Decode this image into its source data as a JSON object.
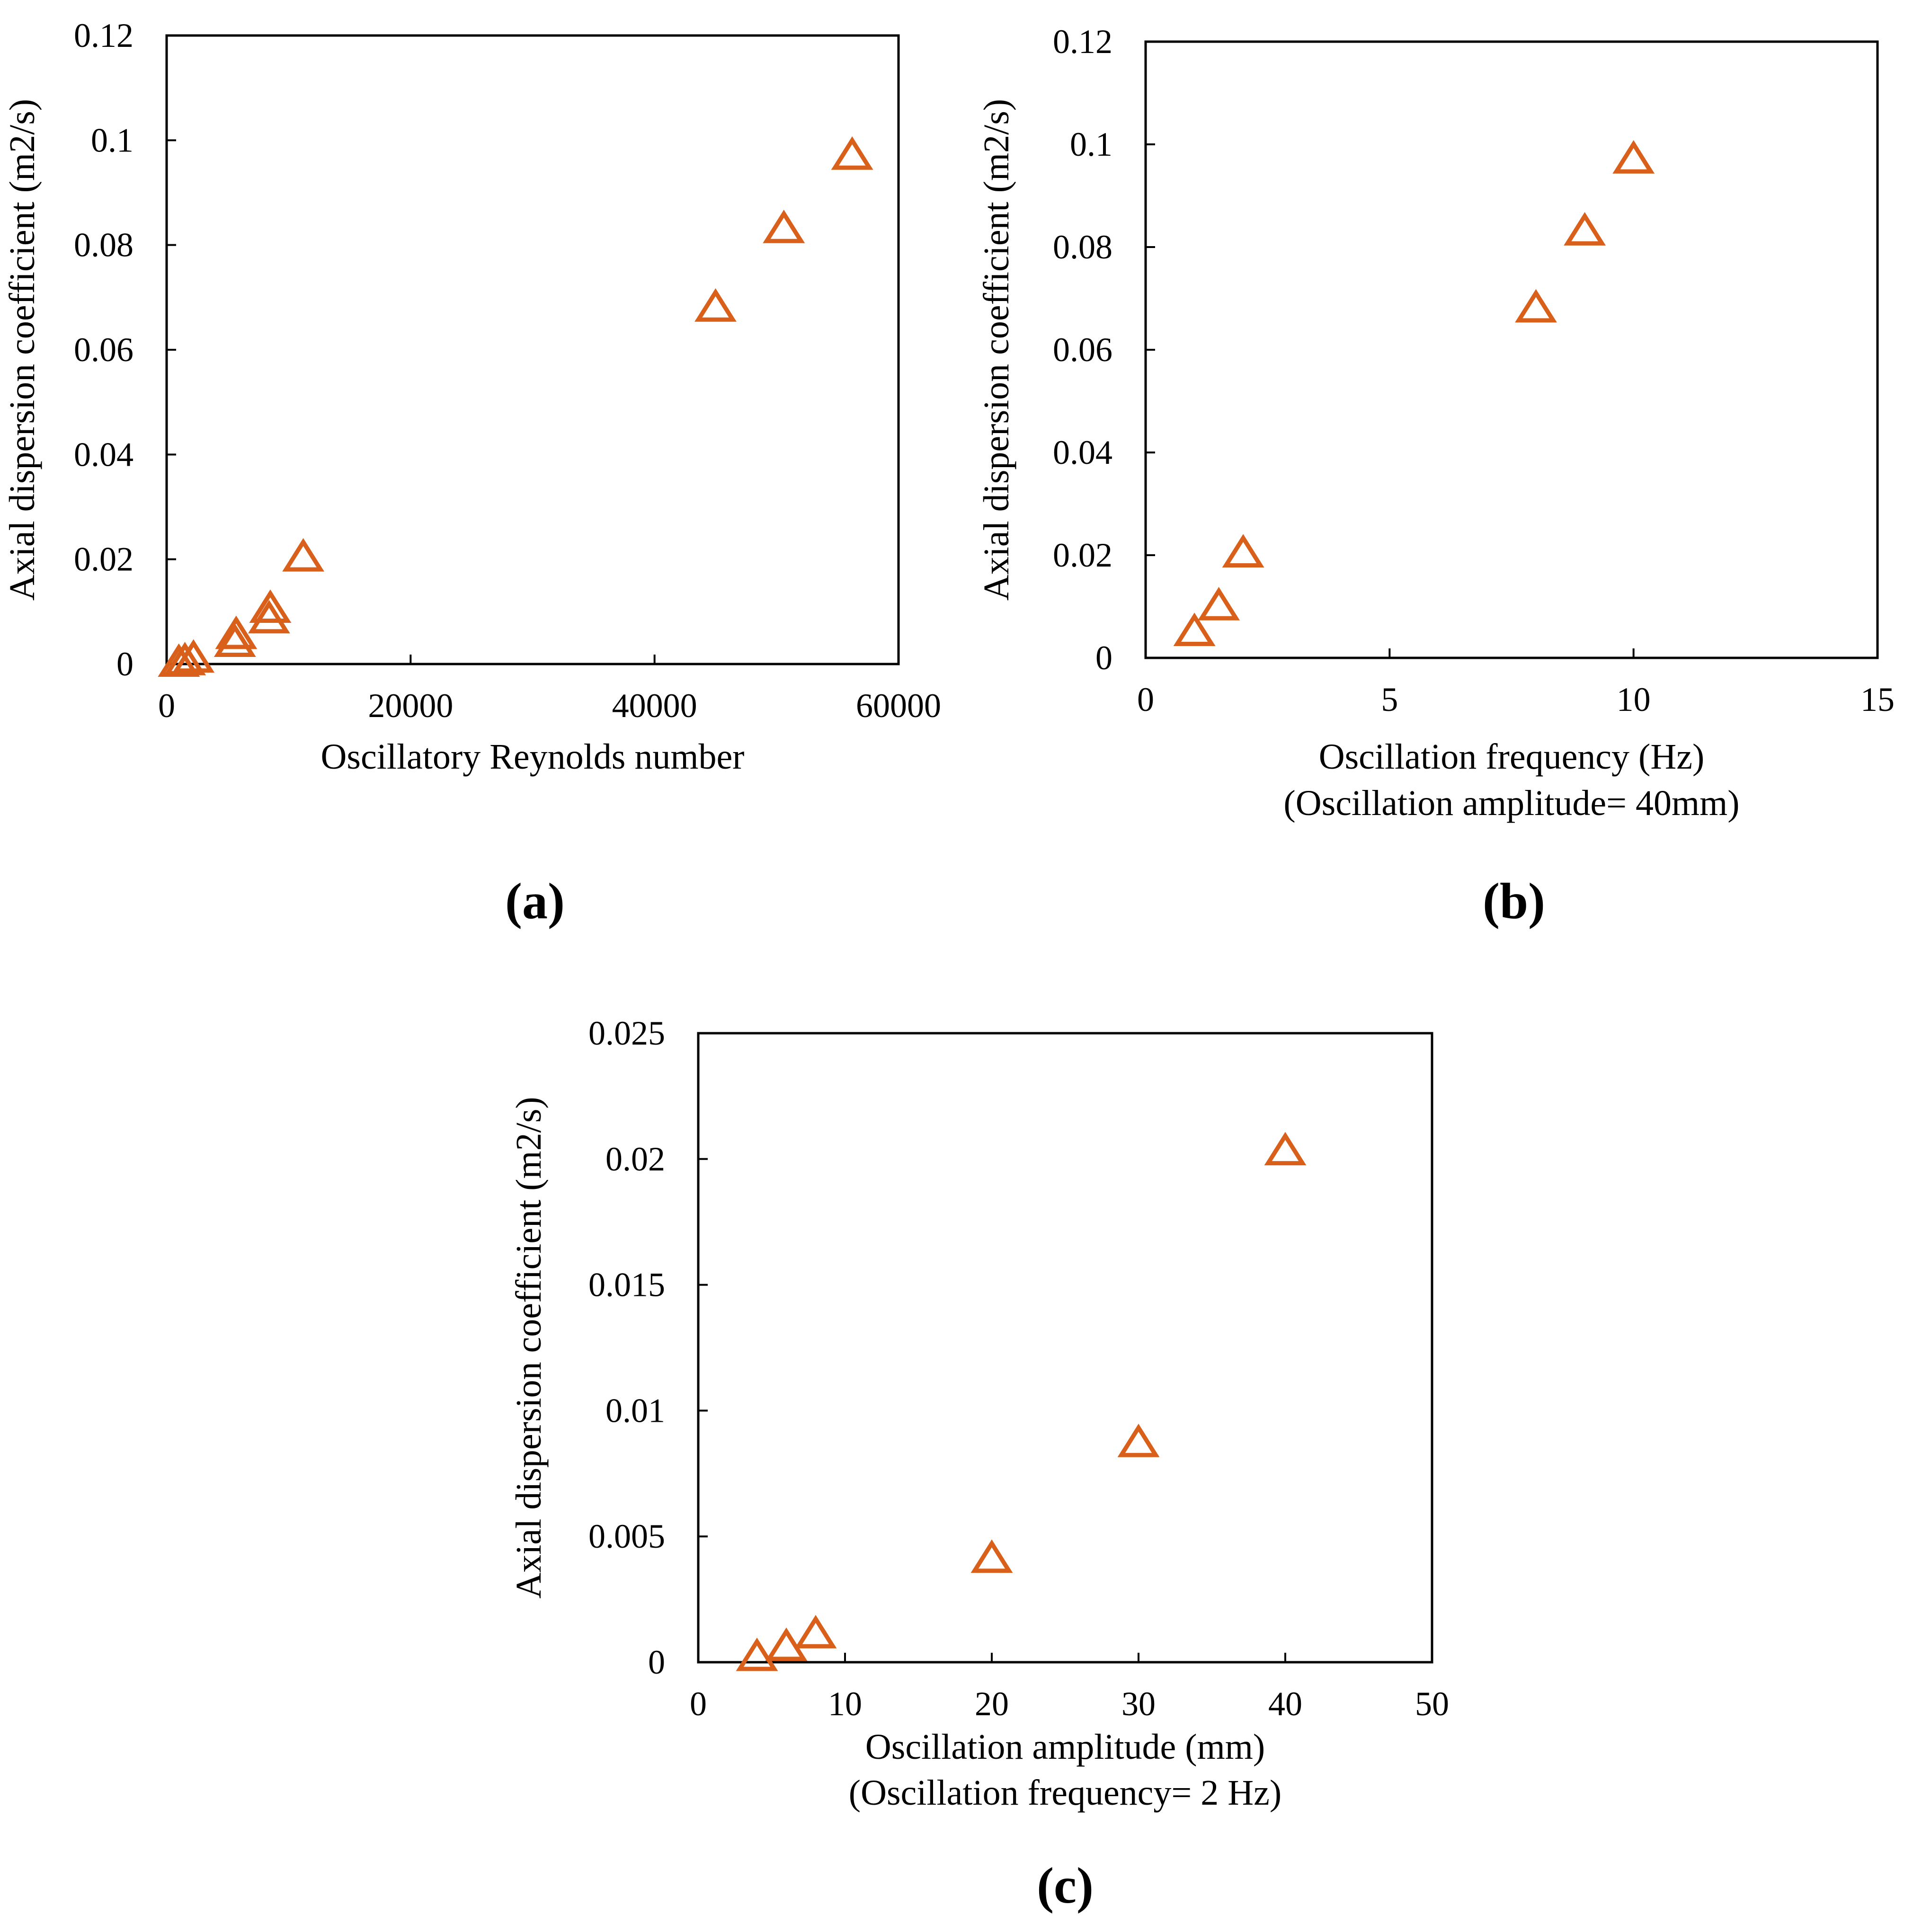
{
  "chart_data": [
    {
      "type": "scatter",
      "panel_label": "(a)",
      "xlabel": "Oscillatory Reynolds number",
      "xlabel2": "",
      "ylabel": "Axial dispersion coefficient (m2/s)",
      "xlim": [
        0,
        60000
      ],
      "ylim": [
        0,
        0.12
      ],
      "xticks": [
        0,
        20000,
        40000,
        60000
      ],
      "xtick_labels": [
        "0",
        "20000",
        "40000",
        "60000"
      ],
      "yticks": [
        0,
        0.02,
        0.04,
        0.06,
        0.08,
        0.1,
        0.12
      ],
      "ytick_labels": [
        "0",
        "0.02",
        "0.04",
        "0.06",
        "0.08",
        "0.1",
        "0.12"
      ],
      "marker": "triangle-open",
      "color": "#D9601A",
      "series": [
        {
          "name": "Axial dispersion coefficient",
          "x": [
            1000,
            1500,
            2200,
            5600,
            5700,
            8400,
            8500,
            11200,
            45000,
            50600,
            56200
          ],
          "y": [
            0.0002,
            0.0005,
            0.001,
            0.004,
            0.0055,
            0.0085,
            0.0105,
            0.0203,
            0.068,
            0.083,
            0.097
          ]
        }
      ]
    },
    {
      "type": "scatter",
      "panel_label": "(b)",
      "xlabel": "Oscillation frequency (Hz)",
      "xlabel2": "(Oscillation amplitude= 40mm)",
      "ylabel": "Axial dispersion coefficient (m2/s)",
      "xlim": [
        0,
        15
      ],
      "ylim": [
        0,
        0.12
      ],
      "xticks": [
        0,
        5,
        10,
        15
      ],
      "xtick_labels": [
        "0",
        "5",
        "10",
        "15"
      ],
      "yticks": [
        0,
        0.02,
        0.04,
        0.06,
        0.08,
        0.1,
        0.12
      ],
      "ytick_labels": [
        "0",
        "0.02",
        "0.04",
        "0.06",
        "0.08",
        "0.1",
        "0.12"
      ],
      "marker": "triangle-open",
      "color": "#D9601A",
      "series": [
        {
          "name": "Axial dispersion coefficient",
          "x": [
            1,
            1.5,
            2,
            8,
            9,
            10
          ],
          "y": [
            0.005,
            0.01,
            0.0203,
            0.068,
            0.083,
            0.097
          ]
        }
      ]
    },
    {
      "type": "scatter",
      "panel_label": "(c)",
      "xlabel": "Oscillation amplitude (mm)",
      "xlabel2": "(Oscillation frequency= 2 Hz)",
      "ylabel": "Axial dispersion coefficient (m2/s)",
      "xlim": [
        0,
        50
      ],
      "ylim": [
        0,
        0.025
      ],
      "xticks": [
        0,
        10,
        20,
        30,
        40,
        50
      ],
      "xtick_labels": [
        "0",
        "10",
        "20",
        "30",
        "40",
        "50"
      ],
      "yticks": [
        0,
        0.005,
        0.01,
        0.015,
        0.02,
        0.025
      ],
      "ytick_labels": [
        "0",
        "0.005",
        "0.01",
        "0.015",
        "0.02",
        "0.025"
      ],
      "marker": "triangle-open",
      "color": "#D9601A",
      "series": [
        {
          "name": "Axial dispersion coefficient",
          "x": [
            4,
            6,
            8,
            20,
            30,
            40
          ],
          "y": [
            0.0002,
            0.0006,
            0.0011,
            0.0041,
            0.0087,
            0.0203
          ]
        }
      ]
    }
  ]
}
